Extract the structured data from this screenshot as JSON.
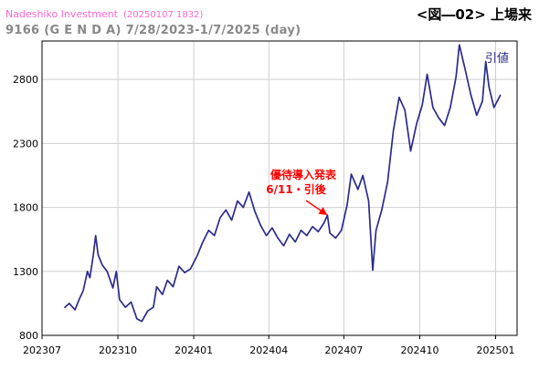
{
  "header": {
    "source": "Nadeshiko Investment",
    "source_timestamp": "(20250107 1832)",
    "figure_label": "<図―02> 上場来",
    "subtitle": "9166 (G E N D A) 7/28/2023-1/7/2025 (day)"
  },
  "colors": {
    "line": "#2b2b8c",
    "grid": "#cfcfcf",
    "annotation": "#ff0000",
    "source": "#ff66cc",
    "subtitle": "#888888"
  },
  "chart_data": {
    "type": "line",
    "title": "9166 (G E N D A) 7/28/2023-1/7/2025 (day)",
    "ylim": [
      800,
      3100
    ],
    "yticks": [
      800,
      1300,
      1800,
      2300,
      2800
    ],
    "xticks": [
      "202307",
      "202310",
      "202401",
      "202404",
      "202407",
      "202410",
      "202501"
    ],
    "grid": true,
    "legend": "top-right",
    "series": [
      {
        "name": "引値",
        "points": [
          [
            "2023-07-28",
            1015
          ],
          [
            "2023-08-03",
            1050
          ],
          [
            "2023-08-10",
            1000
          ],
          [
            "2023-08-15",
            1080
          ],
          [
            "2023-08-20",
            1150
          ],
          [
            "2023-08-25",
            1300
          ],
          [
            "2023-08-28",
            1250
          ],
          [
            "2023-09-01",
            1420
          ],
          [
            "2023-09-04",
            1580
          ],
          [
            "2023-09-07",
            1430
          ],
          [
            "2023-09-12",
            1350
          ],
          [
            "2023-09-18",
            1300
          ],
          [
            "2023-09-25",
            1170
          ],
          [
            "2023-09-29",
            1300
          ],
          [
            "2023-10-03",
            1080
          ],
          [
            "2023-10-10",
            1020
          ],
          [
            "2023-10-17",
            1060
          ],
          [
            "2023-10-24",
            930
          ],
          [
            "2023-10-30",
            910
          ],
          [
            "2023-11-06",
            990
          ],
          [
            "2023-11-13",
            1020
          ],
          [
            "2023-11-17",
            1180
          ],
          [
            "2023-11-24",
            1120
          ],
          [
            "2023-11-30",
            1230
          ],
          [
            "2023-12-07",
            1180
          ],
          [
            "2023-12-14",
            1340
          ],
          [
            "2023-12-21",
            1290
          ],
          [
            "2023-12-28",
            1320
          ],
          [
            "2024-01-05",
            1420
          ],
          [
            "2024-01-12",
            1530
          ],
          [
            "2024-01-19",
            1620
          ],
          [
            "2024-01-26",
            1580
          ],
          [
            "2024-02-02",
            1720
          ],
          [
            "2024-02-09",
            1780
          ],
          [
            "2024-02-16",
            1700
          ],
          [
            "2024-02-23",
            1850
          ],
          [
            "2024-03-01",
            1800
          ],
          [
            "2024-03-08",
            1920
          ],
          [
            "2024-03-15",
            1770
          ],
          [
            "2024-03-22",
            1660
          ],
          [
            "2024-03-29",
            1580
          ],
          [
            "2024-04-05",
            1640
          ],
          [
            "2024-04-12",
            1560
          ],
          [
            "2024-04-19",
            1500
          ],
          [
            "2024-04-26",
            1590
          ],
          [
            "2024-05-03",
            1530
          ],
          [
            "2024-05-10",
            1620
          ],
          [
            "2024-05-17",
            1580
          ],
          [
            "2024-05-24",
            1650
          ],
          [
            "2024-05-31",
            1610
          ],
          [
            "2024-06-07",
            1680
          ],
          [
            "2024-06-11",
            1740
          ],
          [
            "2024-06-14",
            1600
          ],
          [
            "2024-06-21",
            1560
          ],
          [
            "2024-06-28",
            1620
          ],
          [
            "2024-07-05",
            1820
          ],
          [
            "2024-07-10",
            2060
          ],
          [
            "2024-07-18",
            1940
          ],
          [
            "2024-07-24",
            2050
          ],
          [
            "2024-07-31",
            1850
          ],
          [
            "2024-08-05",
            1310
          ],
          [
            "2024-08-09",
            1620
          ],
          [
            "2024-08-16",
            1780
          ],
          [
            "2024-08-23",
            2000
          ],
          [
            "2024-08-30",
            2400
          ],
          [
            "2024-09-06",
            2660
          ],
          [
            "2024-09-13",
            2560
          ],
          [
            "2024-09-20",
            2240
          ],
          [
            "2024-09-27",
            2450
          ],
          [
            "2024-10-04",
            2600
          ],
          [
            "2024-10-10",
            2840
          ],
          [
            "2024-10-17",
            2580
          ],
          [
            "2024-10-24",
            2500
          ],
          [
            "2024-10-31",
            2440
          ],
          [
            "2024-11-07",
            2580
          ],
          [
            "2024-11-14",
            2820
          ],
          [
            "2024-11-18",
            3070
          ],
          [
            "2024-11-25",
            2880
          ],
          [
            "2024-12-02",
            2680
          ],
          [
            "2024-12-09",
            2520
          ],
          [
            "2024-12-16",
            2630
          ],
          [
            "2024-12-20",
            2940
          ],
          [
            "2024-12-24",
            2740
          ],
          [
            "2024-12-30",
            2580
          ],
          [
            "2025-01-07",
            2680
          ]
        ]
      }
    ],
    "annotations": [
      {
        "text": "優待導入発表",
        "text2": "6/11・引後",
        "target_date": "2024-06-11",
        "target_value": 1740
      }
    ]
  }
}
